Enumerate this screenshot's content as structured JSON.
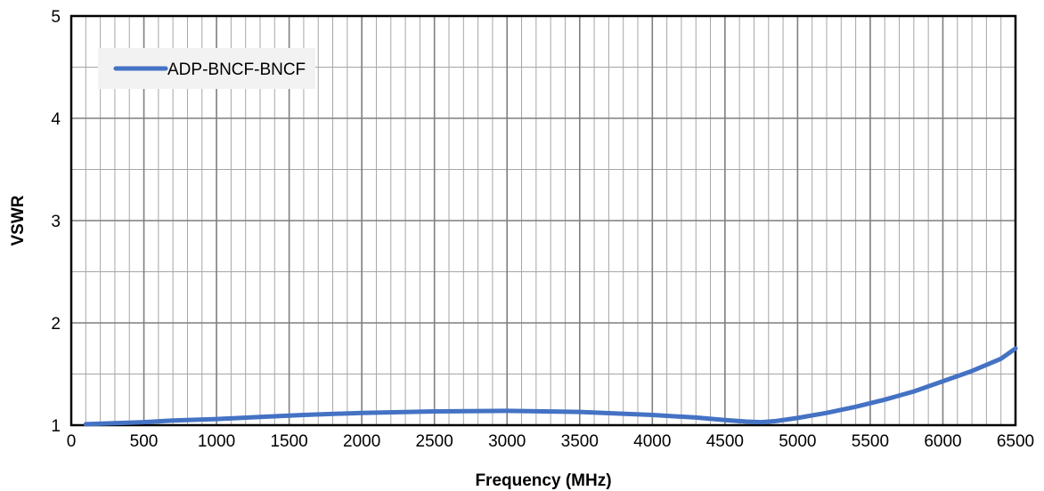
{
  "chart_data": {
    "type": "line",
    "title": "",
    "xlabel": "Frequency (MHz)",
    "ylabel": "VSWR",
    "xlim": [
      0,
      6500
    ],
    "ylim": [
      1,
      5
    ],
    "x_ticks": [
      0,
      500,
      1000,
      1500,
      2000,
      2500,
      3000,
      3500,
      4000,
      4500,
      5000,
      5500,
      6000,
      6500
    ],
    "y_ticks": [
      1,
      2,
      3,
      4,
      5
    ],
    "x_tick_labels": [
      "0",
      "500",
      "1000",
      "1500",
      "2000",
      "2500",
      "3000",
      "3500",
      "4000",
      "4500",
      "5000",
      "5500",
      "6000",
      "6500"
    ],
    "y_tick_labels": [
      "1",
      "2",
      "3",
      "4",
      "5"
    ],
    "grid": {
      "major": true,
      "minor": true
    },
    "legend_position": "top-left",
    "series": [
      {
        "name": "ADP-BNCF-BNCF",
        "color": "#4472C4",
        "x": [
          100,
          300,
          500,
          700,
          1000,
          1300,
          1600,
          2000,
          2500,
          3000,
          3500,
          4000,
          4300,
          4500,
          4650,
          4750,
          4850,
          5000,
          5200,
          5400,
          5600,
          5800,
          6000,
          6200,
          6400,
          6500
        ],
        "y": [
          1.01,
          1.02,
          1.03,
          1.045,
          1.06,
          1.08,
          1.1,
          1.12,
          1.135,
          1.14,
          1.13,
          1.1,
          1.075,
          1.05,
          1.035,
          1.03,
          1.04,
          1.07,
          1.12,
          1.18,
          1.25,
          1.33,
          1.43,
          1.53,
          1.65,
          1.75
        ]
      }
    ]
  }
}
